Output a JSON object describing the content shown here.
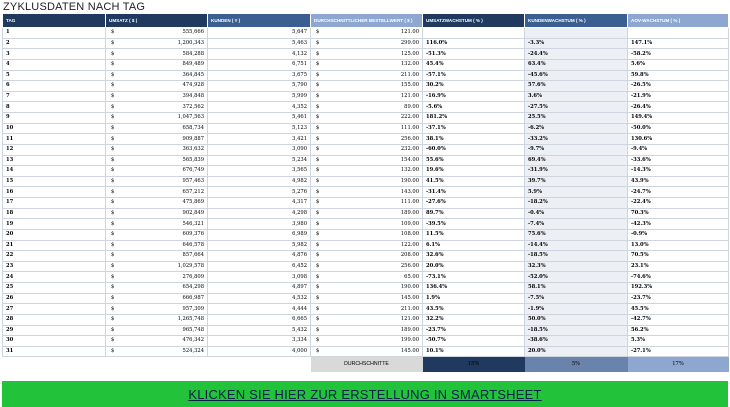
{
  "title": "ZYKLUSDATEN NACH TAG",
  "currency_symbol": "$",
  "headers": {
    "tag": "TAG",
    "umsatz": "UMSATZ ( $ )",
    "kunden": "KUNDEN ( # )",
    "avg_order": "DURCHSCHNITTLICHER BESTELLWERT ( $ )",
    "umsatz_wachstum": "UMSATZWACHSTUM ( % )",
    "kunden_wachstum": "KUNDENWACHSTUM ( % )",
    "aov_wachstum": "AOV-WACHSTUM ( % )"
  },
  "rows": [
    {
      "tag": "1",
      "umsatz": "555,666",
      "kunden": "5,647",
      "avg": "121.00",
      "uw": "",
      "kw": "",
      "aw": ""
    },
    {
      "tag": "2",
      "umsatz": "1,200,343",
      "kunden": "5,463",
      "avg": "299.00",
      "uw": "116.0%",
      "kw": "-3.3%",
      "aw": "147.1%"
    },
    {
      "tag": "3",
      "umsatz": "584,288",
      "kunden": "4,132",
      "avg": "125.00",
      "uw": "-51.3%",
      "kw": "-24.4%",
      "aw": "-58.2%"
    },
    {
      "tag": "4",
      "umsatz": "849,489",
      "kunden": "6,751",
      "avg": "132.00",
      "uw": "45.4%",
      "kw": "63.4%",
      "aw": "5.6%"
    },
    {
      "tag": "5",
      "umsatz": "364,845",
      "kunden": "3,675",
      "avg": "211.00",
      "uw": "-57.1%",
      "kw": "-45.6%",
      "aw": "59.8%"
    },
    {
      "tag": "6",
      "umsatz": "474,928",
      "kunden": "5,790",
      "avg": "155.00",
      "uw": "30.2%",
      "kw": "57.6%",
      "aw": "-26.5%"
    },
    {
      "tag": "7",
      "umsatz": "394,848",
      "kunden": "5,999",
      "avg": "121.00",
      "uw": "-16.9%",
      "kw": "3.6%",
      "aw": "-21.9%"
    },
    {
      "tag": "8",
      "umsatz": "372,562",
      "kunden": "4,352",
      "avg": "89.00",
      "uw": "-5.6%",
      "kw": "-27.5%",
      "aw": "-26.4%"
    },
    {
      "tag": "9",
      "umsatz": "1,047,563",
      "kunden": "5,461",
      "avg": "222.00",
      "uw": "181.2%",
      "kw": "25.5%",
      "aw": "149.4%"
    },
    {
      "tag": "10",
      "umsatz": "658,734",
      "kunden": "5,123",
      "avg": "111.00",
      "uw": "-37.1%",
      "kw": "-6.2%",
      "aw": "-50.0%"
    },
    {
      "tag": "11",
      "umsatz": "909,887",
      "kunden": "3,421",
      "avg": "256.00",
      "uw": "38.1%",
      "kw": "-33.2%",
      "aw": "130.6%"
    },
    {
      "tag": "12",
      "umsatz": "363,632",
      "kunden": "3,090",
      "avg": "232.00",
      "uw": "-60.0%",
      "kw": "-9.7%",
      "aw": "-9.4%"
    },
    {
      "tag": "13",
      "umsatz": "565,839",
      "kunden": "5,234",
      "avg": "154.00",
      "uw": "55.6%",
      "kw": "69.4%",
      "aw": "-33.6%"
    },
    {
      "tag": "14",
      "umsatz": "676,749",
      "kunden": "3,565",
      "avg": "132.00",
      "uw": "19.6%",
      "kw": "-31.9%",
      "aw": "-14.3%"
    },
    {
      "tag": "15",
      "umsatz": "957,463",
      "kunden": "4,982",
      "avg": "190.00",
      "uw": "41.5%",
      "kw": "39.7%",
      "aw": "43.9%"
    },
    {
      "tag": "16",
      "umsatz": "657,212",
      "kunden": "5,276",
      "avg": "143.00",
      "uw": "-31.4%",
      "kw": "5.9%",
      "aw": "-24.7%"
    },
    {
      "tag": "17",
      "umsatz": "475,869",
      "kunden": "4,317",
      "avg": "111.00",
      "uw": "-27.6%",
      "kw": "-18.2%",
      "aw": "-22.4%"
    },
    {
      "tag": "18",
      "umsatz": "902,849",
      "kunden": "4,298",
      "avg": "189.00",
      "uw": "89.7%",
      "kw": "-0.4%",
      "aw": "70.3%"
    },
    {
      "tag": "19",
      "umsatz": "546,321",
      "kunden": "3,980",
      "avg": "109.00",
      "uw": "-39.5%",
      "kw": "-7.4%",
      "aw": "-42.3%"
    },
    {
      "tag": "20",
      "umsatz": "609,376",
      "kunden": "6,989",
      "avg": "108.00",
      "uw": "11.5%",
      "kw": "75.6%",
      "aw": "-0.9%"
    },
    {
      "tag": "21",
      "umsatz": "646,578",
      "kunden": "5,982",
      "avg": "122.00",
      "uw": "6.1%",
      "kw": "-14.4%",
      "aw": "13.0%"
    },
    {
      "tag": "22",
      "umsatz": "857,664",
      "kunden": "4,876",
      "avg": "208.00",
      "uw": "32.6%",
      "kw": "-18.5%",
      "aw": "70.5%"
    },
    {
      "tag": "23",
      "umsatz": "1,029,578",
      "kunden": "6,452",
      "avg": "256.00",
      "uw": "20.0%",
      "kw": "32.3%",
      "aw": "23.1%"
    },
    {
      "tag": "24",
      "umsatz": "276,809",
      "kunden": "3,098",
      "avg": "65.00",
      "uw": "-73.1%",
      "kw": "-52.0%",
      "aw": "-74.6%"
    },
    {
      "tag": "25",
      "umsatz": "654,298",
      "kunden": "4,897",
      "avg": "190.00",
      "uw": "136.4%",
      "kw": "58.1%",
      "aw": "192.3%"
    },
    {
      "tag": "26",
      "umsatz": "666,987",
      "kunden": "4,532",
      "avg": "145.00",
      "uw": "1.9%",
      "kw": "-7.5%",
      "aw": "-23.7%"
    },
    {
      "tag": "27",
      "umsatz": "957,309",
      "kunden": "4,444",
      "avg": "211.00",
      "uw": "43.5%",
      "kw": "-1.9%",
      "aw": "45.5%"
    },
    {
      "tag": "28",
      "umsatz": "1,265,748",
      "kunden": "6,665",
      "avg": "121.00",
      "uw": "32.2%",
      "kw": "50.0%",
      "aw": "-42.7%"
    },
    {
      "tag": "29",
      "umsatz": "965,748",
      "kunden": "5,432",
      "avg": "189.00",
      "uw": "-23.7%",
      "kw": "-18.5%",
      "aw": "56.2%"
    },
    {
      "tag": "30",
      "umsatz": "476,342",
      "kunden": "3,334",
      "avg": "199.00",
      "uw": "-50.7%",
      "kw": "-38.6%",
      "aw": "5.3%"
    },
    {
      "tag": "31",
      "umsatz": "524,324",
      "kunden": "4,000",
      "avg": "145.00",
      "uw": "10.1%",
      "kw": "20.0%",
      "aw": "-27.1%"
    }
  ],
  "averages": {
    "label": "DURCHSCHNITTE",
    "umsatz_wachstum": "15%",
    "kunden_wachstum": "5%",
    "aov_wachstum": "17%"
  },
  "cta": {
    "label": "KLICKEN SIE HIER ZUR ERSTELLUNG IN SMARTSHEET"
  },
  "colors": {
    "header_dark": "#20395e",
    "header_mid": "#3c5f92",
    "header_light": "#8da7d1",
    "cta_bg": "#22c33a",
    "cta_text": "#0c2348"
  }
}
